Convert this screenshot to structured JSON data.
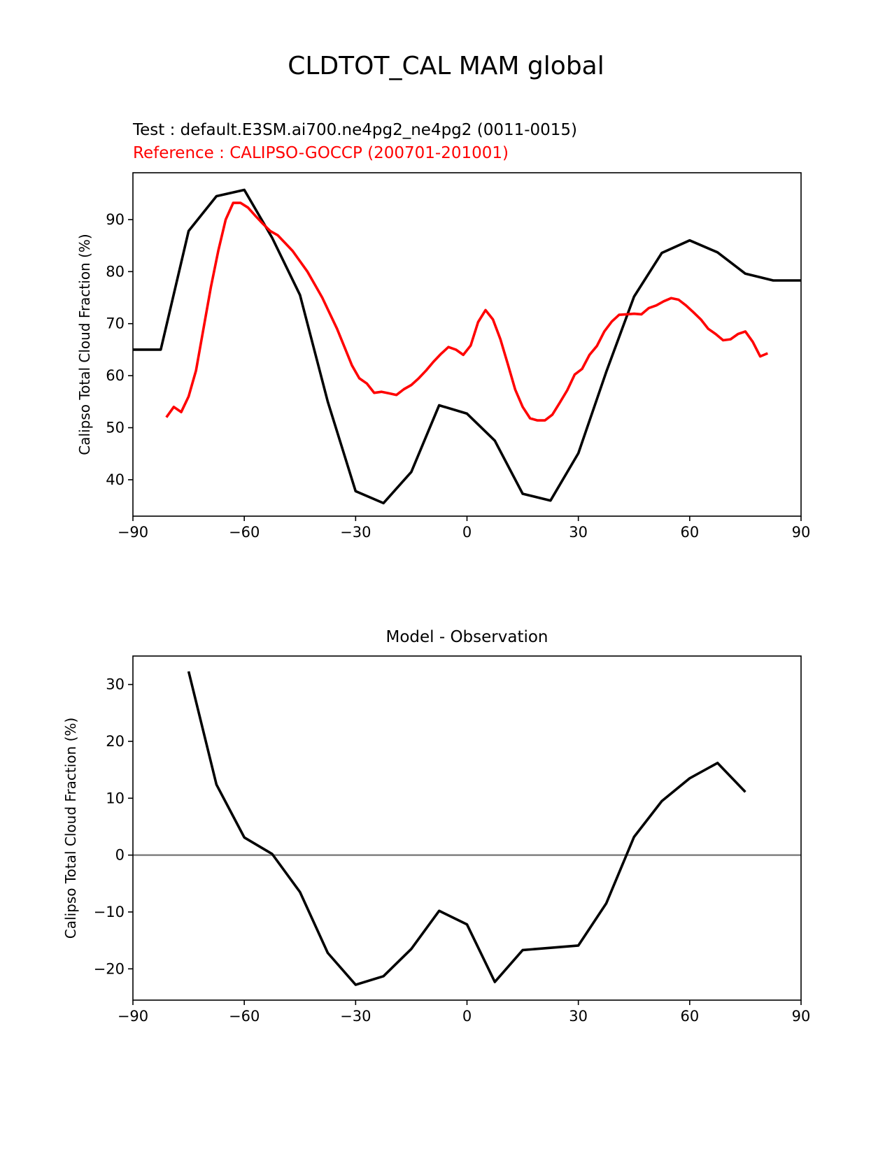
{
  "figure_title": "CLDTOT_CAL MAM global",
  "test_label": "Test : default.E3SM.ai700.ne4pg2_ne4pg2 (0011-0015)",
  "reference_label": "Reference : CALIPSO-GOCCP (200701-201001)",
  "colors": {
    "test": "#000000",
    "reference": "#ff0000",
    "zero_line": "#808080"
  },
  "chart_data": [
    {
      "type": "line",
      "title": "",
      "ylabel": "Calipso Total Cloud Fraction (%)",
      "xlim": [
        -90,
        90
      ],
      "ylim": [
        33,
        99
      ],
      "xticks": [
        -90,
        -60,
        -30,
        0,
        30,
        60,
        90
      ],
      "yticks": [
        40,
        50,
        60,
        70,
        80,
        90
      ],
      "grid": false,
      "series": [
        {
          "role": "test",
          "x": [
            -90,
            -82.5,
            -75,
            -67.5,
            -60,
            -52.5,
            -45,
            -37.5,
            -30,
            -22.5,
            -15,
            -7.5,
            0,
            7.5,
            15,
            22.5,
            30,
            37.5,
            45,
            52.5,
            60,
            67.5,
            75,
            82.5,
            90
          ],
          "y": [
            65,
            65,
            87.8,
            94.5,
            95.7,
            86.5,
            75.5,
            55.0,
            37.8,
            35.5,
            41.5,
            54.3,
            52.7,
            47.5,
            37.3,
            36.0,
            45.1,
            60.7,
            75.2,
            83.6,
            86.0,
            83.7,
            79.6,
            78.3,
            78.3
          ]
        },
        {
          "role": "reference",
          "x": [
            -81,
            -79,
            -77,
            -75,
            -73,
            -71,
            -69,
            -67,
            -65,
            -63,
            -61,
            -59,
            -57,
            -55,
            -53,
            -51,
            -49,
            -47,
            -45,
            -43,
            -41,
            -39,
            -37,
            -35,
            -33,
            -31,
            -29,
            -27,
            -25,
            -23,
            -21,
            -19,
            -17,
            -15,
            -13,
            -11,
            -9,
            -7,
            -5,
            -3,
            -1,
            1,
            3,
            5,
            7,
            9,
            11,
            13,
            15,
            17,
            19,
            21,
            23,
            25,
            27,
            29,
            31,
            33,
            35,
            37,
            39,
            41,
            43,
            45,
            47,
            49,
            51,
            53,
            55,
            57,
            59,
            61,
            63,
            65,
            67,
            69,
            71,
            73,
            75,
            77,
            79,
            81
          ],
          "y": [
            52.0,
            54.0,
            53.0,
            56.0,
            61.0,
            69.0,
            77.0,
            84.0,
            90.0,
            93.2,
            93.2,
            92.3,
            90.7,
            89.2,
            87.8,
            87.0,
            85.5,
            84.0,
            82.0,
            80.0,
            77.5,
            75.0,
            72.0,
            69.0,
            65.5,
            62.0,
            59.5,
            58.5,
            56.7,
            56.9,
            56.6,
            56.3,
            57.4,
            58.2,
            59.5,
            61.0,
            62.7,
            64.2,
            65.5,
            65.0,
            64.0,
            65.8,
            70.3,
            72.6,
            70.8,
            67.0,
            62.2,
            57.3,
            54.0,
            51.8,
            51.4,
            51.4,
            52.5,
            54.8,
            57.2,
            60.2,
            61.3,
            64.0,
            65.7,
            68.5,
            70.4,
            71.7,
            71.8,
            71.9,
            71.8,
            73.0,
            73.5,
            74.3,
            74.9,
            74.6,
            73.5,
            72.2,
            70.8,
            69.0,
            68.0,
            66.8,
            67.0,
            68.0,
            68.5,
            66.5,
            63.7,
            64.3
          ]
        }
      ]
    },
    {
      "type": "line",
      "title": "Model - Observation",
      "ylabel": "Calipso Total Cloud Fraction (%)",
      "xlim": [
        -90,
        90
      ],
      "ylim": [
        -25.5,
        35
      ],
      "xticks": [
        -90,
        -60,
        -30,
        0,
        30,
        60,
        90
      ],
      "yticks": [
        -20,
        -10,
        0,
        10,
        20,
        30
      ],
      "grid": false,
      "zero_line": 0,
      "series": [
        {
          "role": "difference",
          "x": [
            -75,
            -67.5,
            -60,
            -52.5,
            -45,
            -37.5,
            -30,
            -22.5,
            -15,
            -7.5,
            0,
            7.5,
            15,
            22.5,
            30,
            37.5,
            45,
            52.5,
            60,
            67.5,
            75
          ],
          "y": [
            32.3,
            12.4,
            3.1,
            0.2,
            -6.5,
            -17.2,
            -22.8,
            -21.3,
            -16.5,
            -9.8,
            -12.2,
            -22.3,
            -16.7,
            -16.3,
            -15.9,
            -8.5,
            3.2,
            9.5,
            13.5,
            16.2,
            11.1
          ]
        }
      ]
    }
  ]
}
